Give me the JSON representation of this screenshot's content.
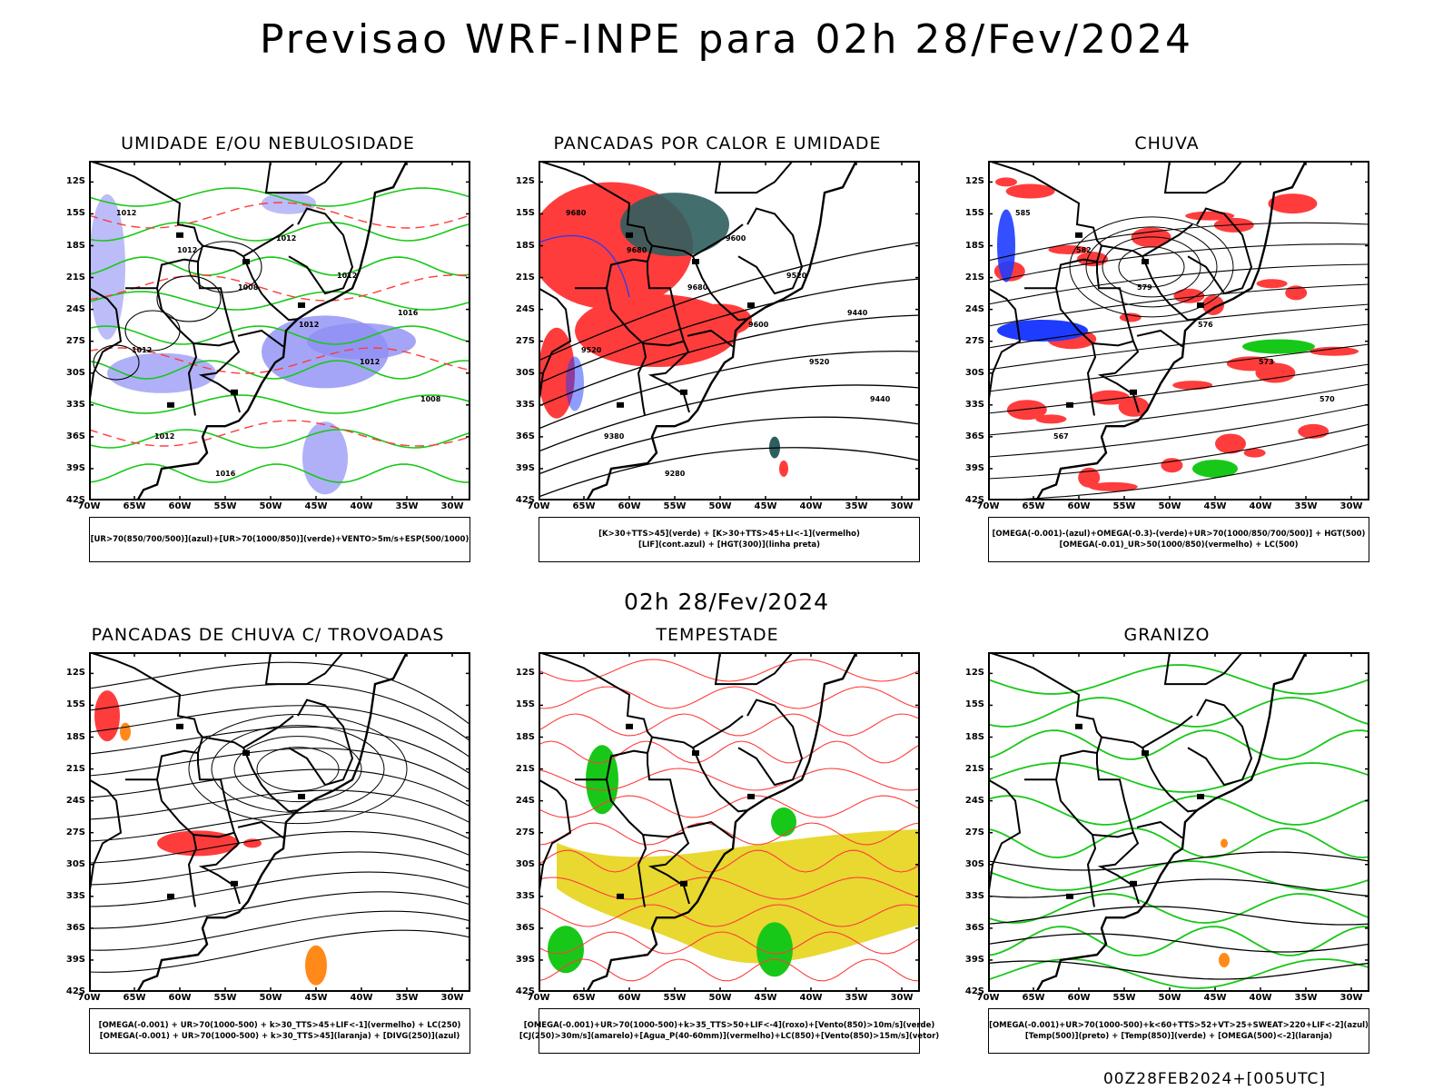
{
  "main_title": "Previsao WRF-INPE  para 02h 28/Fev/2024",
  "mid_title": "02h 28/Fev/2024",
  "footer": "00Z28FEB2024+[005UTC]",
  "lat_labels": [
    "12S",
    "15S",
    "18S",
    "21S",
    "24S",
    "27S",
    "30S",
    "33S",
    "36S",
    "39S",
    "42S"
  ],
  "lon_labels": [
    "70W",
    "65W",
    "60W",
    "55W",
    "50W",
    "45W",
    "40W",
    "35W",
    "30W"
  ],
  "colors": {
    "blue_shade": "#8f8ff5",
    "green": "#18c818",
    "red": "#ff3c3c",
    "dark_teal": "#2f5e5e",
    "yellow": "#e8d830",
    "orange": "#ff8a1a",
    "blue": "#1e3cff",
    "black": "#000000"
  },
  "panels": [
    {
      "title": "UMIDADE E/OU NEBULOSIDADE",
      "legend": [
        "[UR>70(850/700/500)](azul)+[UR>70(1000/850)](verde)+VENTO>5m/s+ESP(500/1000)"
      ],
      "contour_labels": [
        "1012",
        "1012",
        "1008",
        "1012",
        "1012",
        "1008",
        "1012",
        "1016",
        "1012",
        "1012",
        "1016",
        "1012"
      ]
    },
    {
      "title": "PANCADAS POR CALOR E UMIDADE",
      "legend": [
        "[K>30+TTS>45](verde) + [K>30+TTS>45+LI<-1](vermelho)",
        "[LIF](cont.azul) + [HGT(300)](linha preta)"
      ],
      "contour_labels": [
        "9680",
        "9680",
        "9680",
        "9600",
        "9520",
        "9440",
        "9380",
        "9280",
        "9600",
        "9520",
        "9440",
        "9520"
      ]
    },
    {
      "title": "CHUVA",
      "legend": [
        "[OMEGA(-0.001)-(azul)+OMEGA(-0.3)-(verde)+UR>70(1000/850/700/500)] + HGT(500)",
        "[OMEGA(-0.01)_UR>50(1000/850)(vermelho) + LC(500)"
      ],
      "contour_labels": [
        "585",
        "582",
        "579",
        "576",
        "573",
        "570",
        "567"
      ]
    },
    {
      "title": "PANCADAS DE CHUVA C/ TROVOADAS",
      "legend": [
        "[OMEGA(-0.001) + UR>70(1000-500) + k>30_TTS>45+LIF<-1](vermelho) + LC(250)",
        "[OMEGA(-0.001) + UR>70(1000-500) + k>30_TTS>45](laranja) + [DIVG(250)](azul)"
      ],
      "contour_labels": []
    },
    {
      "title": "TEMPESTADE",
      "legend": [
        "[OMEGA(-0.001)+UR>70(1000-500)+k>35_TTS>50+LIF<-4](roxo)+[Vento(850)>10m/s](verde)",
        "[CJ(250)>30m/s](amarelo)+[Agua_P(40-60mm)](vermelho)+LC(850)+[Vento(850)>15m/s](vetor)"
      ],
      "contour_labels": []
    },
    {
      "title": "GRANIZO",
      "legend": [
        "[OMEGA(-0.001)+UR>70(1000-500)+k<60+TTS>52+VT>25+SWEAT>220+LIF<-2](azul)",
        "[Temp(500)](preto) + [Temp(850)](verde) + [OMEGA(500)<-2](laranja)"
      ],
      "contour_labels": []
    }
  ]
}
